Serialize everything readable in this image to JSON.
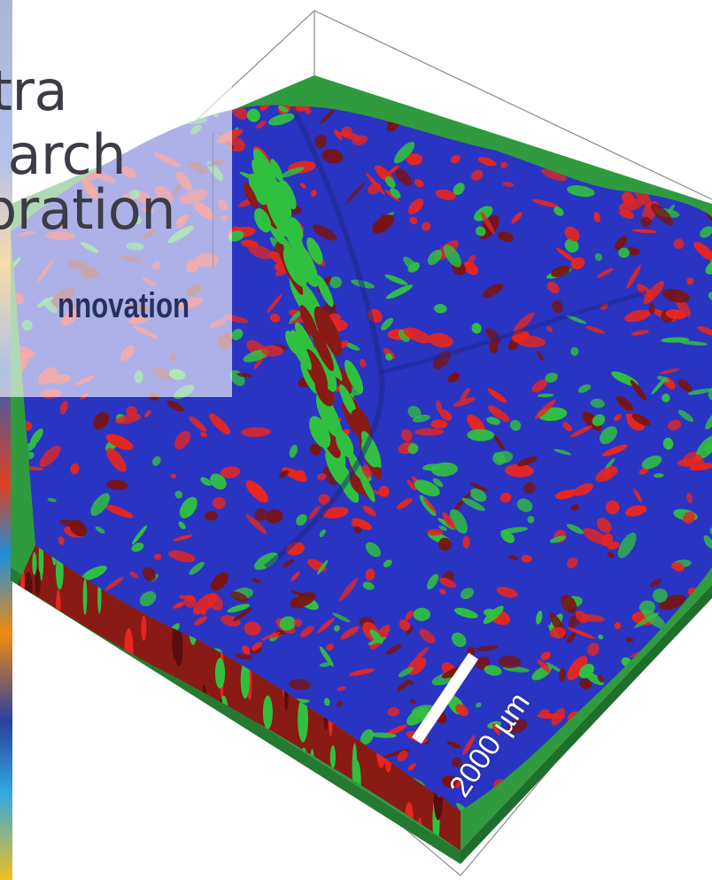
{
  "branding": {
    "title_lines": [
      "tra",
      "arch",
      "pration"
    ],
    "tagline": "nnovation",
    "title_color": "#3c3c46",
    "tagline_color": "#24305e"
  },
  "figure": {
    "scale_bar_label": "2000 µm",
    "phase_colors": [
      "#2a34c2",
      "#e8261e",
      "#30c040",
      "#1e7a2e"
    ],
    "box_line_color": "#8c8c8c"
  }
}
